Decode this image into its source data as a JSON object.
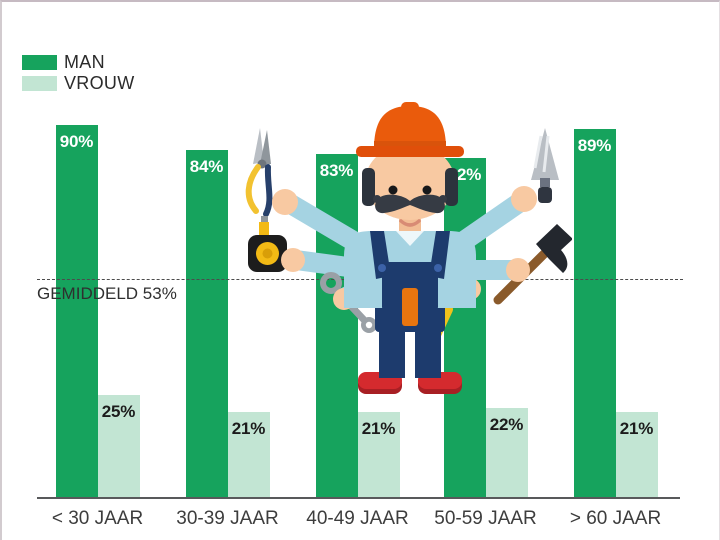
{
  "chart_data": {
    "type": "bar",
    "title": "",
    "categories": [
      "< 30 JAAR",
      "30-39 JAAR",
      "40-49 JAAR",
      "50-59 JAAR",
      "> 60 JAAR"
    ],
    "series": [
      {
        "name": "MAN",
        "color": "#16a35d",
        "values": [
          90,
          84,
          83,
          82,
          89
        ]
      },
      {
        "name": "VROUW",
        "color": "#c2e5d3",
        "values": [
          25,
          21,
          21,
          22,
          21
        ]
      }
    ],
    "value_suffix": "%",
    "average_line": {
      "label": "GEMIDDELD 53%",
      "value": 53
    },
    "ylim": [
      0,
      100
    ],
    "grid": false,
    "legend_position": "top-left"
  },
  "legend": {
    "items": [
      {
        "label": "MAN",
        "color": "#16a35d"
      },
      {
        "label": "VROUW",
        "color": "#c2e5d3"
      }
    ]
  },
  "illustration": {
    "name": "multi-armed construction worker",
    "tools": [
      "pliers",
      "tape-measure",
      "wrench",
      "trowel",
      "hammer",
      "paint-roller"
    ]
  },
  "colors": {
    "axis": "#58595b",
    "axis_text": "#3d3d3d",
    "average_text": "#2f2f2f"
  }
}
